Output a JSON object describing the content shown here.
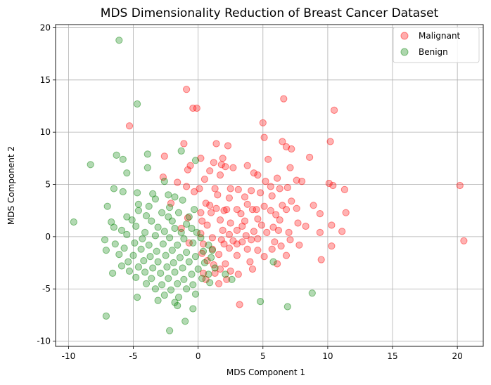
{
  "chart_data": {
    "type": "scatter",
    "title": "MDS Dimensionality Reduction of Breast Cancer Dataset",
    "xlabel": "MDS Component 1",
    "ylabel": "MDS Component 2",
    "xlim": [
      -11,
      22
    ],
    "ylim": [
      -10.5,
      20.3
    ],
    "xticks": [
      -10,
      -5,
      0,
      5,
      10,
      15,
      20
    ],
    "yticks": [
      -10,
      -5,
      0,
      5,
      10,
      15,
      20
    ],
    "grid": true,
    "legend_position": "top-right",
    "series": [
      {
        "name": "Malignant",
        "color": "#ff0000",
        "points": [
          [
            -0.9,
            14.1
          ],
          [
            6.6,
            13.2
          ],
          [
            -0.4,
            12.3
          ],
          [
            -0.1,
            12.3
          ],
          [
            10.5,
            12.1
          ],
          [
            5.0,
            10.9
          ],
          [
            -5.3,
            10.6
          ],
          [
            5.1,
            9.5
          ],
          [
            6.5,
            9.1
          ],
          [
            10.2,
            9.1
          ],
          [
            -1.1,
            8.9
          ],
          [
            1.4,
            8.9
          ],
          [
            6.8,
            8.6
          ],
          [
            7.2,
            8.4
          ],
          [
            2.3,
            8.7
          ],
          [
            -2.6,
            7.7
          ],
          [
            1.9,
            7.5
          ],
          [
            0.2,
            7.5
          ],
          [
            8.6,
            7.6
          ],
          [
            5.4,
            7.4
          ],
          [
            1.2,
            7.1
          ],
          [
            -0.6,
            6.8
          ],
          [
            1.8,
            6.9
          ],
          [
            2.1,
            6.7
          ],
          [
            2.7,
            6.6
          ],
          [
            3.8,
            6.8
          ],
          [
            7.1,
            6.6
          ],
          [
            -0.8,
            6.4
          ],
          [
            0.9,
            6.3
          ],
          [
            4.3,
            6.1
          ],
          [
            4.6,
            5.9
          ],
          [
            1.7,
            5.9
          ],
          [
            6.1,
            5.6
          ],
          [
            10.1,
            5.1
          ],
          [
            -2.7,
            5.7
          ],
          [
            -1.6,
            5.2
          ],
          [
            0.5,
            5.5
          ],
          [
            5.2,
            5.3
          ],
          [
            7.6,
            5.4
          ],
          [
            8.0,
            5.3
          ],
          [
            -0.9,
            4.8
          ],
          [
            0.1,
            4.6
          ],
          [
            1.3,
            4.6
          ],
          [
            2.5,
            4.6
          ],
          [
            3.1,
            4.5
          ],
          [
            5.6,
            4.8
          ],
          [
            6.3,
            4.6
          ],
          [
            6.9,
            4.7
          ],
          [
            4.1,
            4.4
          ],
          [
            10.4,
            4.9
          ],
          [
            11.3,
            4.5
          ],
          [
            -0.3,
            4.3
          ],
          [
            1.5,
            4.0
          ],
          [
            4.8,
            4.2
          ],
          [
            5.7,
            3.9
          ],
          [
            3.6,
            3.8
          ],
          [
            2.4,
            3.7
          ],
          [
            20.2,
            4.9
          ],
          [
            7.2,
            3.4
          ],
          [
            3.8,
            3.1
          ],
          [
            0.6,
            3.2
          ],
          [
            -2.1,
            3.2
          ],
          [
            0.9,
            3.0
          ],
          [
            5.1,
            2.9
          ],
          [
            6.5,
            3.0
          ],
          [
            8.9,
            3.0
          ],
          [
            1.4,
            2.7
          ],
          [
            2.2,
            2.6
          ],
          [
            3.0,
            2.6
          ],
          [
            4.2,
            2.6
          ],
          [
            4.5,
            2.6
          ],
          [
            6.8,
            2.6
          ],
          [
            7.6,
            2.7
          ],
          [
            0.2,
            2.3
          ],
          [
            1.0,
            2.3
          ],
          [
            2.0,
            2.5
          ],
          [
            3.3,
            2.2
          ],
          [
            5.6,
            2.5
          ],
          [
            6.0,
            2.1
          ],
          [
            9.4,
            2.2
          ],
          [
            11.4,
            2.3
          ],
          [
            -0.8,
            1.8
          ],
          [
            0.3,
            1.5
          ],
          [
            1.7,
            1.6
          ],
          [
            2.5,
            1.3
          ],
          [
            3.6,
            1.5
          ],
          [
            4.6,
            1.7
          ],
          [
            6.3,
            1.6
          ],
          [
            7.7,
            1.3
          ],
          [
            0.7,
            1.1
          ],
          [
            3.4,
            1.0
          ],
          [
            4.9,
            1.1
          ],
          [
            5.8,
            0.9
          ],
          [
            8.3,
            1.0
          ],
          [
            10.3,
            1.1
          ],
          [
            -1.3,
            0.8
          ],
          [
            1.9,
            0.6
          ],
          [
            3.0,
            0.6
          ],
          [
            4.3,
            0.5
          ],
          [
            5.3,
            0.4
          ],
          [
            6.2,
            0.6
          ],
          [
            7.0,
            0.4
          ],
          [
            0.2,
            0.3
          ],
          [
            2.4,
            0.2
          ],
          [
            3.7,
            0.1
          ],
          [
            9.4,
            0.4
          ],
          [
            11.1,
            0.5
          ],
          [
            1.1,
            -0.1
          ],
          [
            1.8,
            -0.3
          ],
          [
            2.7,
            -0.4
          ],
          [
            3.4,
            -0.5
          ],
          [
            4.1,
            -0.3
          ],
          [
            4.6,
            -0.2
          ],
          [
            5.9,
            -0.5
          ],
          [
            7.1,
            -0.3
          ],
          [
            20.5,
            -0.4
          ],
          [
            -0.7,
            -0.6
          ],
          [
            0.4,
            -0.7
          ],
          [
            2.0,
            -0.7
          ],
          [
            3.0,
            -0.7
          ],
          [
            6.4,
            -0.9
          ],
          [
            7.8,
            -0.8
          ],
          [
            10.3,
            -0.9
          ],
          [
            1.1,
            -1.2
          ],
          [
            2.4,
            -1.1
          ],
          [
            3.8,
            -1.2
          ],
          [
            4.6,
            -1.3
          ],
          [
            5.7,
            -1.2
          ],
          [
            0.3,
            -1.6
          ],
          [
            1.6,
            -1.7
          ],
          [
            3.0,
            -1.8
          ],
          [
            5.1,
            -1.9
          ],
          [
            6.8,
            -1.8
          ],
          [
            9.5,
            -2.2
          ],
          [
            0.7,
            -2.3
          ],
          [
            2.1,
            -2.6
          ],
          [
            4.0,
            -2.4
          ],
          [
            1.2,
            -2.7
          ],
          [
            6.1,
            -2.6
          ],
          [
            1.7,
            -3.1
          ],
          [
            2.5,
            -3.3
          ],
          [
            4.2,
            -3.1
          ],
          [
            0.4,
            -3.5
          ],
          [
            1.3,
            -3.5
          ],
          [
            3.1,
            -3.6
          ],
          [
            0.6,
            -4.1
          ],
          [
            2.2,
            -4.1
          ],
          [
            1.6,
            -4.5
          ],
          [
            3.2,
            -6.5
          ]
        ]
      },
      {
        "name": "Benign",
        "color": "#008000",
        "points": [
          [
            -6.1,
            18.8
          ],
          [
            -4.7,
            12.7
          ],
          [
            -8.3,
            6.9
          ],
          [
            -6.3,
            7.8
          ],
          [
            -5.8,
            7.4
          ],
          [
            -3.9,
            7.9
          ],
          [
            -3.9,
            6.6
          ],
          [
            -5.5,
            6.1
          ],
          [
            -0.2,
            7.3
          ],
          [
            -2.6,
            5.3
          ],
          [
            -6.5,
            4.6
          ],
          [
            -5.8,
            4.3
          ],
          [
            -4.7,
            4.2
          ],
          [
            -3.5,
            4.1
          ],
          [
            -2.3,
            4.0
          ],
          [
            -1.8,
            3.8
          ],
          [
            -3.3,
            3.6
          ],
          [
            -1.2,
            3.5
          ],
          [
            -7.0,
            2.9
          ],
          [
            -4.6,
            3.1
          ],
          [
            -3.8,
            2.9
          ],
          [
            -2.2,
            2.8
          ],
          [
            -0.3,
            2.6
          ],
          [
            -4.6,
            2.5
          ],
          [
            -2.8,
            2.3
          ],
          [
            -1.5,
            2.3
          ],
          [
            -5.5,
            1.9
          ],
          [
            -4.0,
            2.0
          ],
          [
            -2.3,
            1.9
          ],
          [
            -0.7,
            1.9
          ],
          [
            -9.6,
            1.4
          ],
          [
            -6.7,
            1.4
          ],
          [
            -5.1,
            1.6
          ],
          [
            -3.6,
            1.5
          ],
          [
            -2.0,
            1.5
          ],
          [
            -0.9,
            1.2
          ],
          [
            -6.5,
            0.9
          ],
          [
            -4.8,
            1.0
          ],
          [
            -3.1,
            0.9
          ],
          [
            -1.8,
            0.8
          ],
          [
            -0.5,
            0.8
          ],
          [
            -5.9,
            0.6
          ],
          [
            -4.1,
            0.4
          ],
          [
            -2.6,
            0.5
          ],
          [
            -1.3,
            0.4
          ],
          [
            -0.1,
            0.4
          ],
          [
            -7.2,
            -0.3
          ],
          [
            -5.5,
            0.2
          ],
          [
            -4.3,
            -0.2
          ],
          [
            -3.3,
            0.1
          ],
          [
            -2.2,
            -0.1
          ],
          [
            -1.1,
            -0.2
          ],
          [
            0.2,
            -0.1
          ],
          [
            -6.4,
            -0.7
          ],
          [
            -4.9,
            -0.6
          ],
          [
            -3.8,
            -0.8
          ],
          [
            -2.7,
            -0.7
          ],
          [
            -1.6,
            -0.8
          ],
          [
            -0.4,
            -0.6
          ],
          [
            0.8,
            -0.8
          ],
          [
            -7.1,
            -1.3
          ],
          [
            -5.7,
            -1.1
          ],
          [
            -4.4,
            -1.2
          ],
          [
            -3.2,
            -1.4
          ],
          [
            -2.0,
            -1.3
          ],
          [
            -0.9,
            -1.5
          ],
          [
            0.4,
            -1.4
          ],
          [
            -6.1,
            -1.7
          ],
          [
            -5.0,
            -1.8
          ],
          [
            -3.7,
            -1.9
          ],
          [
            -2.5,
            -1.8
          ],
          [
            -1.4,
            -2.0
          ],
          [
            -0.2,
            -1.9
          ],
          [
            1.0,
            -2.0
          ],
          [
            -5.4,
            -2.4
          ],
          [
            -4.2,
            -2.3
          ],
          [
            -3.1,
            -2.4
          ],
          [
            -1.9,
            -2.5
          ],
          [
            -0.7,
            -2.4
          ],
          [
            0.5,
            -2.5
          ],
          [
            -5.9,
            -2.8
          ],
          [
            -4.6,
            -2.9
          ],
          [
            -3.5,
            -3.0
          ],
          [
            -2.4,
            -2.9
          ],
          [
            -1.2,
            -3.0
          ],
          [
            0.0,
            -3.1
          ],
          [
            1.3,
            -3.0
          ],
          [
            -6.6,
            -3.5
          ],
          [
            -5.3,
            -3.3
          ],
          [
            -4.1,
            -3.4
          ],
          [
            -2.9,
            -3.5
          ],
          [
            -1.8,
            -3.4
          ],
          [
            -0.5,
            -3.6
          ],
          [
            0.8,
            -3.6
          ],
          [
            2.1,
            -3.6
          ],
          [
            -4.8,
            -3.9
          ],
          [
            -3.6,
            -4.0
          ],
          [
            -2.3,
            -4.0
          ],
          [
            -1.1,
            -4.1
          ],
          [
            0.3,
            -4.0
          ],
          [
            -4.0,
            -4.5
          ],
          [
            -2.8,
            -4.6
          ],
          [
            -1.6,
            -4.5
          ],
          [
            -0.4,
            -4.6
          ],
          [
            0.9,
            -4.4
          ],
          [
            -3.3,
            -5.0
          ],
          [
            -2.1,
            -5.1
          ],
          [
            -0.9,
            -5.0
          ],
          [
            -4.7,
            -5.8
          ],
          [
            -2.6,
            -5.6
          ],
          [
            -1.5,
            -5.8
          ],
          [
            -0.2,
            -5.5
          ],
          [
            -3.1,
            -6.1
          ],
          [
            -1.8,
            -6.3
          ],
          [
            -1.6,
            -6.6
          ],
          [
            -0.4,
            -6.9
          ],
          [
            4.8,
            -6.2
          ],
          [
            6.9,
            -6.7
          ],
          [
            8.8,
            -5.4
          ],
          [
            5.8,
            -2.4
          ],
          [
            -1.0,
            -8.1
          ],
          [
            -2.2,
            -9.0
          ],
          [
            -7.1,
            -7.6
          ],
          [
            1.1,
            -1.3
          ],
          [
            2.6,
            -4.1
          ],
          [
            -1.3,
            8.2
          ]
        ]
      }
    ]
  }
}
